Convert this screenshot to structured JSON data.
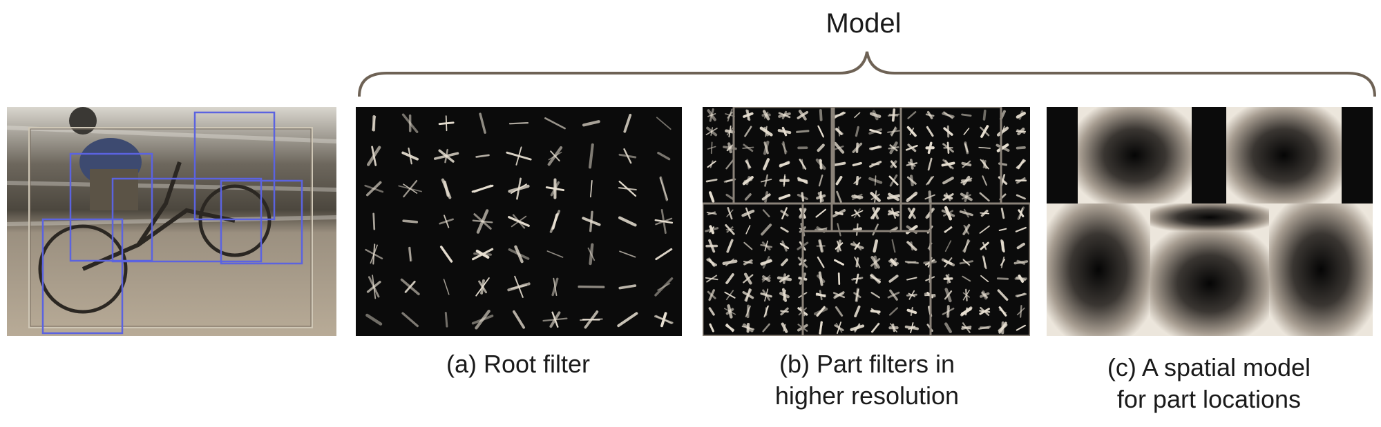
{
  "header": {
    "title": "Model"
  },
  "panels": [
    {
      "caption_lines": [
        ""
      ]
    },
    {
      "caption_lines": [
        "(a) Root filter"
      ]
    },
    {
      "caption_lines": [
        "(b) Part filters in",
        "higher resolution"
      ]
    },
    {
      "caption_lines": [
        "(c) A spatial model",
        "for part locations"
      ]
    }
  ],
  "colors": {
    "box_outline": "#5b63e0",
    "root_outline": "#c9c0b0",
    "filter_bg": "#0b0b0b",
    "stroke": "#e8e0d2"
  }
}
